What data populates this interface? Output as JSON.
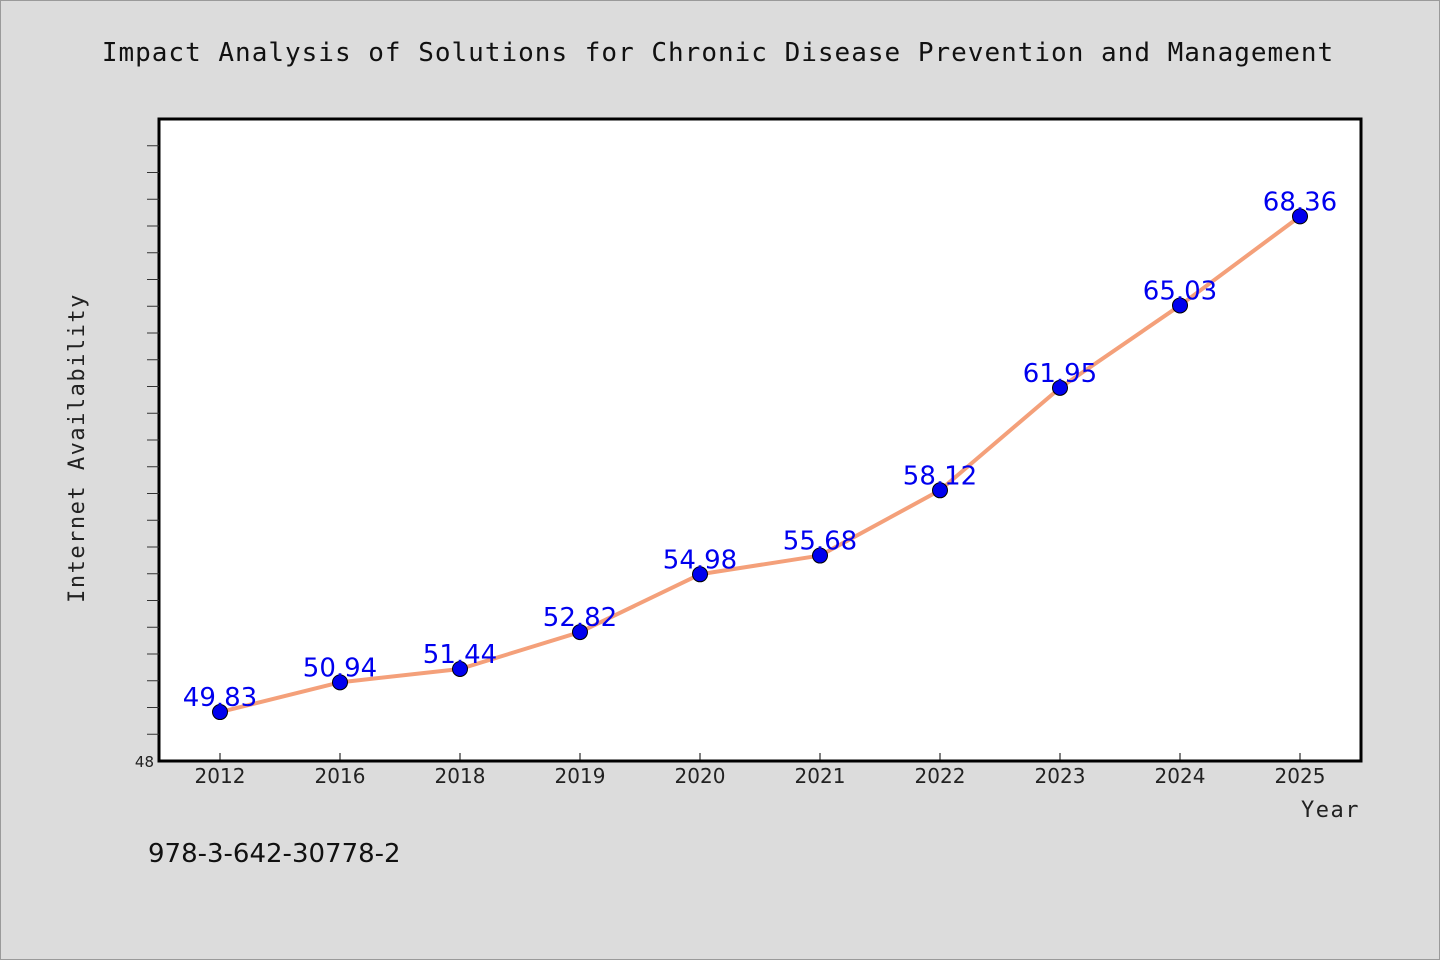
{
  "chart_data": {
    "type": "line",
    "title": "Impact Analysis of Solutions for Chronic Disease Prevention and Management",
    "xlabel": "Year",
    "ylabel": "Internet Availability",
    "categories": [
      "2012",
      "2016",
      "2018",
      "2019",
      "2020",
      "2021",
      "2022",
      "2023",
      "2024",
      "2025"
    ],
    "values": [
      49.83,
      50.94,
      51.44,
      52.82,
      54.98,
      55.68,
      58.12,
      61.95,
      65.03,
      68.36
    ],
    "data_labels": [
      "49.83",
      "50.94",
      "51.44",
      "52.82",
      "54.98",
      "55.68",
      "58.12",
      "61.95",
      "65.03",
      "68.36"
    ],
    "ylim": [
      48,
      72
    ],
    "y_tick_labels": [
      "48"
    ],
    "y_minor_step": 1,
    "grid": false,
    "line_color": "#f4a07a",
    "marker_color": "#0000ee",
    "label_color": "#0000ee"
  },
  "footer": {
    "isbn": "978-3-642-30778-2"
  }
}
